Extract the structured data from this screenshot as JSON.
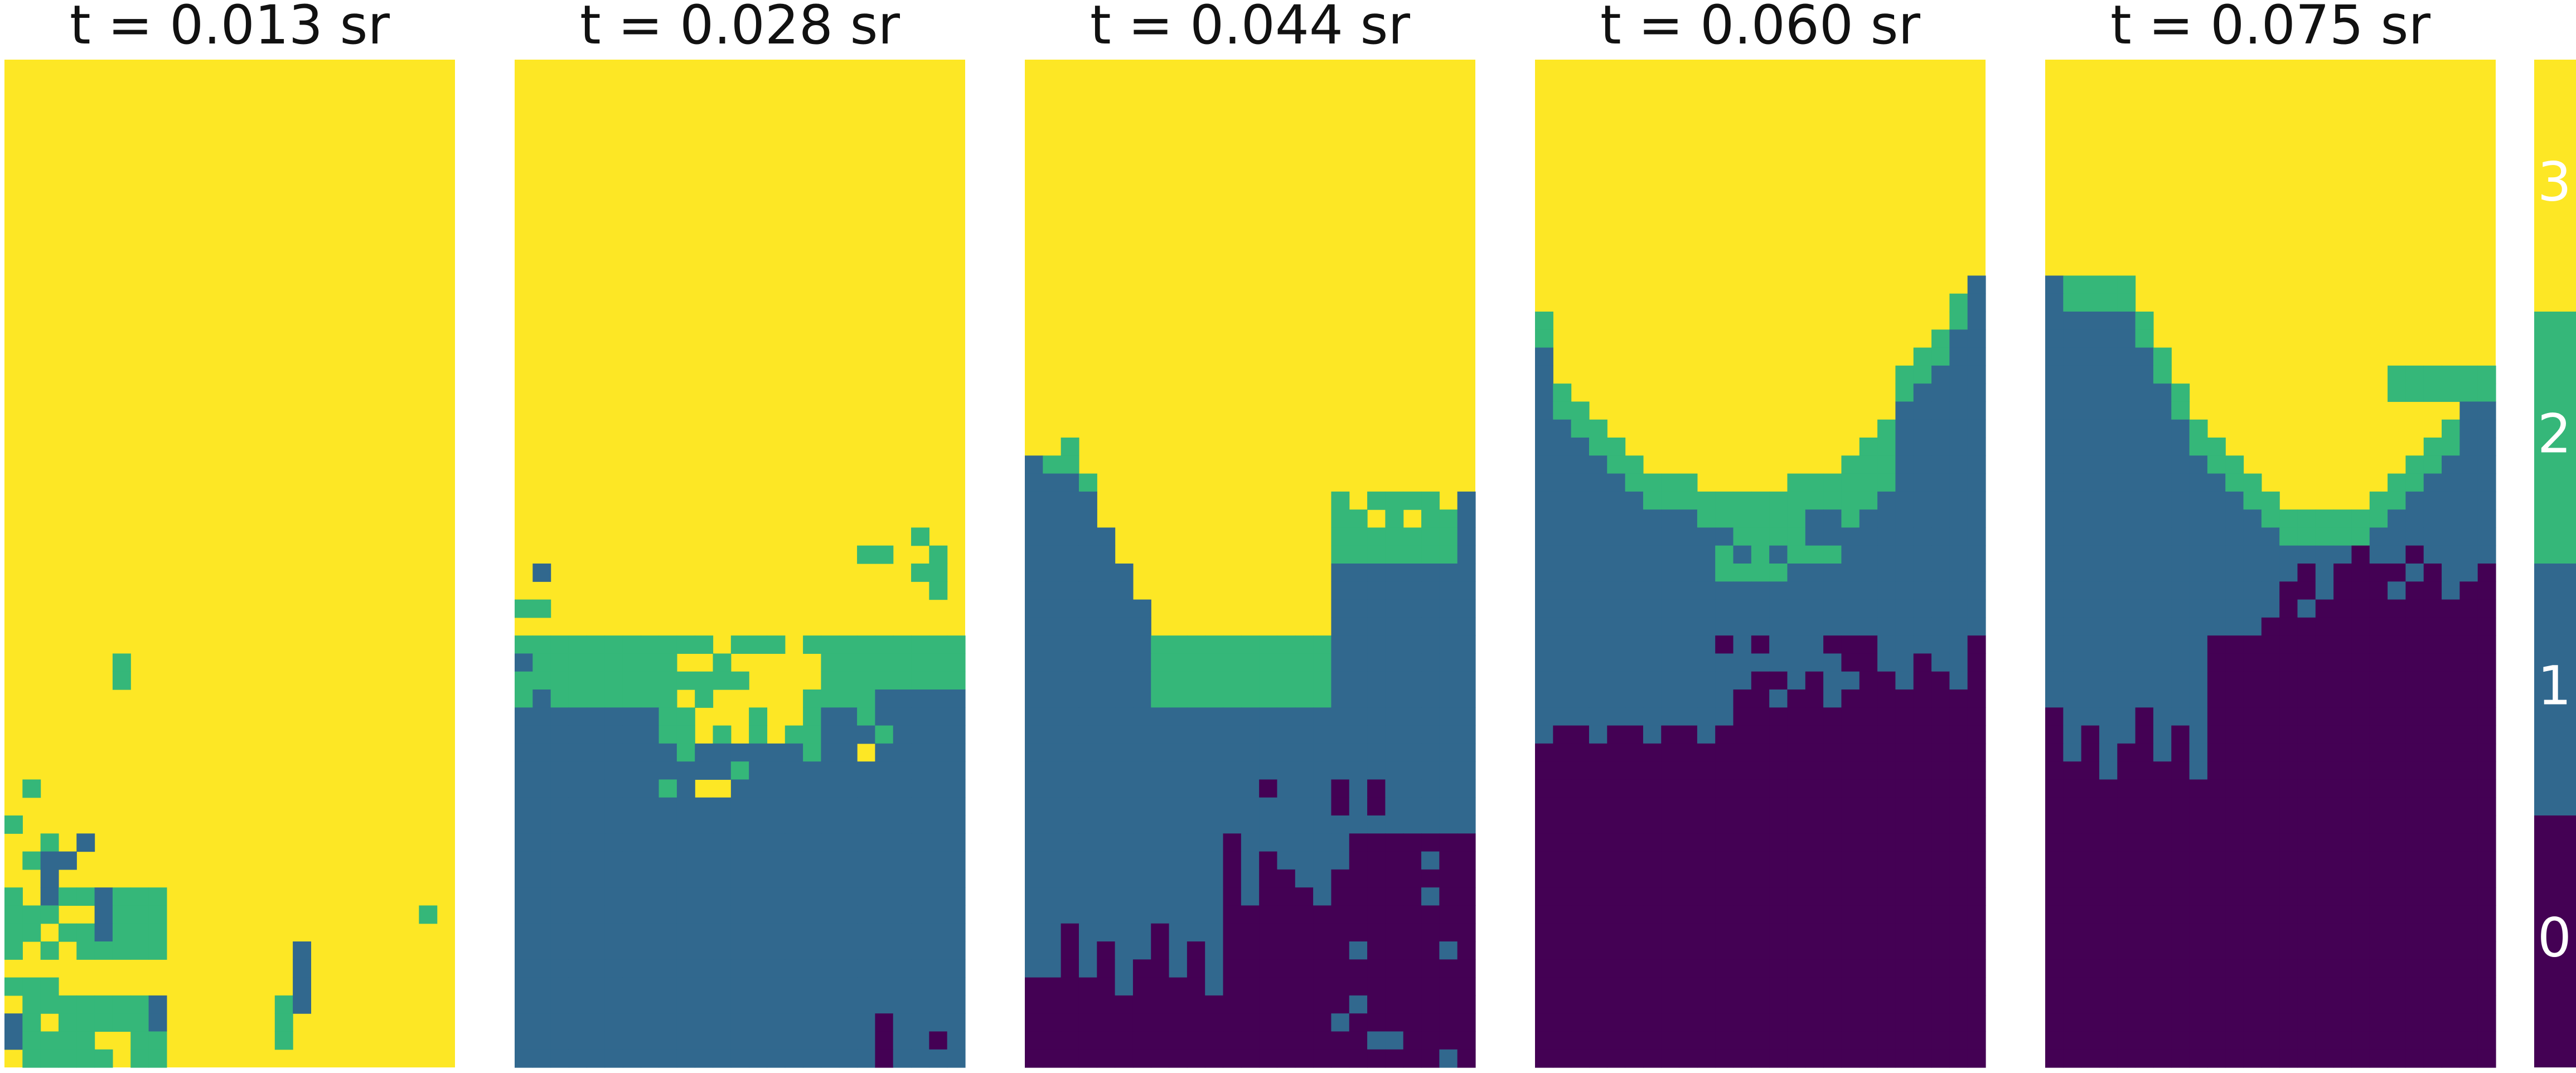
{
  "chart_data": {
    "type": "heatmap",
    "title": "",
    "xlabel": "",
    "ylabel": "",
    "panels": [
      {
        "title": "t = 0.013 sr"
      },
      {
        "title": "t = 0.028 sr"
      },
      {
        "title": "t = 0.044 sr"
      },
      {
        "title": "t = 0.060 sr"
      },
      {
        "title": "t = 0.075 sr"
      }
    ],
    "colorbar": {
      "levels": [
        {
          "value": 0,
          "label": "0",
          "color": "#440154"
        },
        {
          "value": 1,
          "label": "1",
          "color": "#31688e"
        },
        {
          "value": 2,
          "label": "2",
          "color": "#35b779"
        },
        {
          "value": 3,
          "label": "3",
          "color": "#fde725"
        }
      ],
      "range": [
        0,
        3
      ]
    }
  }
}
